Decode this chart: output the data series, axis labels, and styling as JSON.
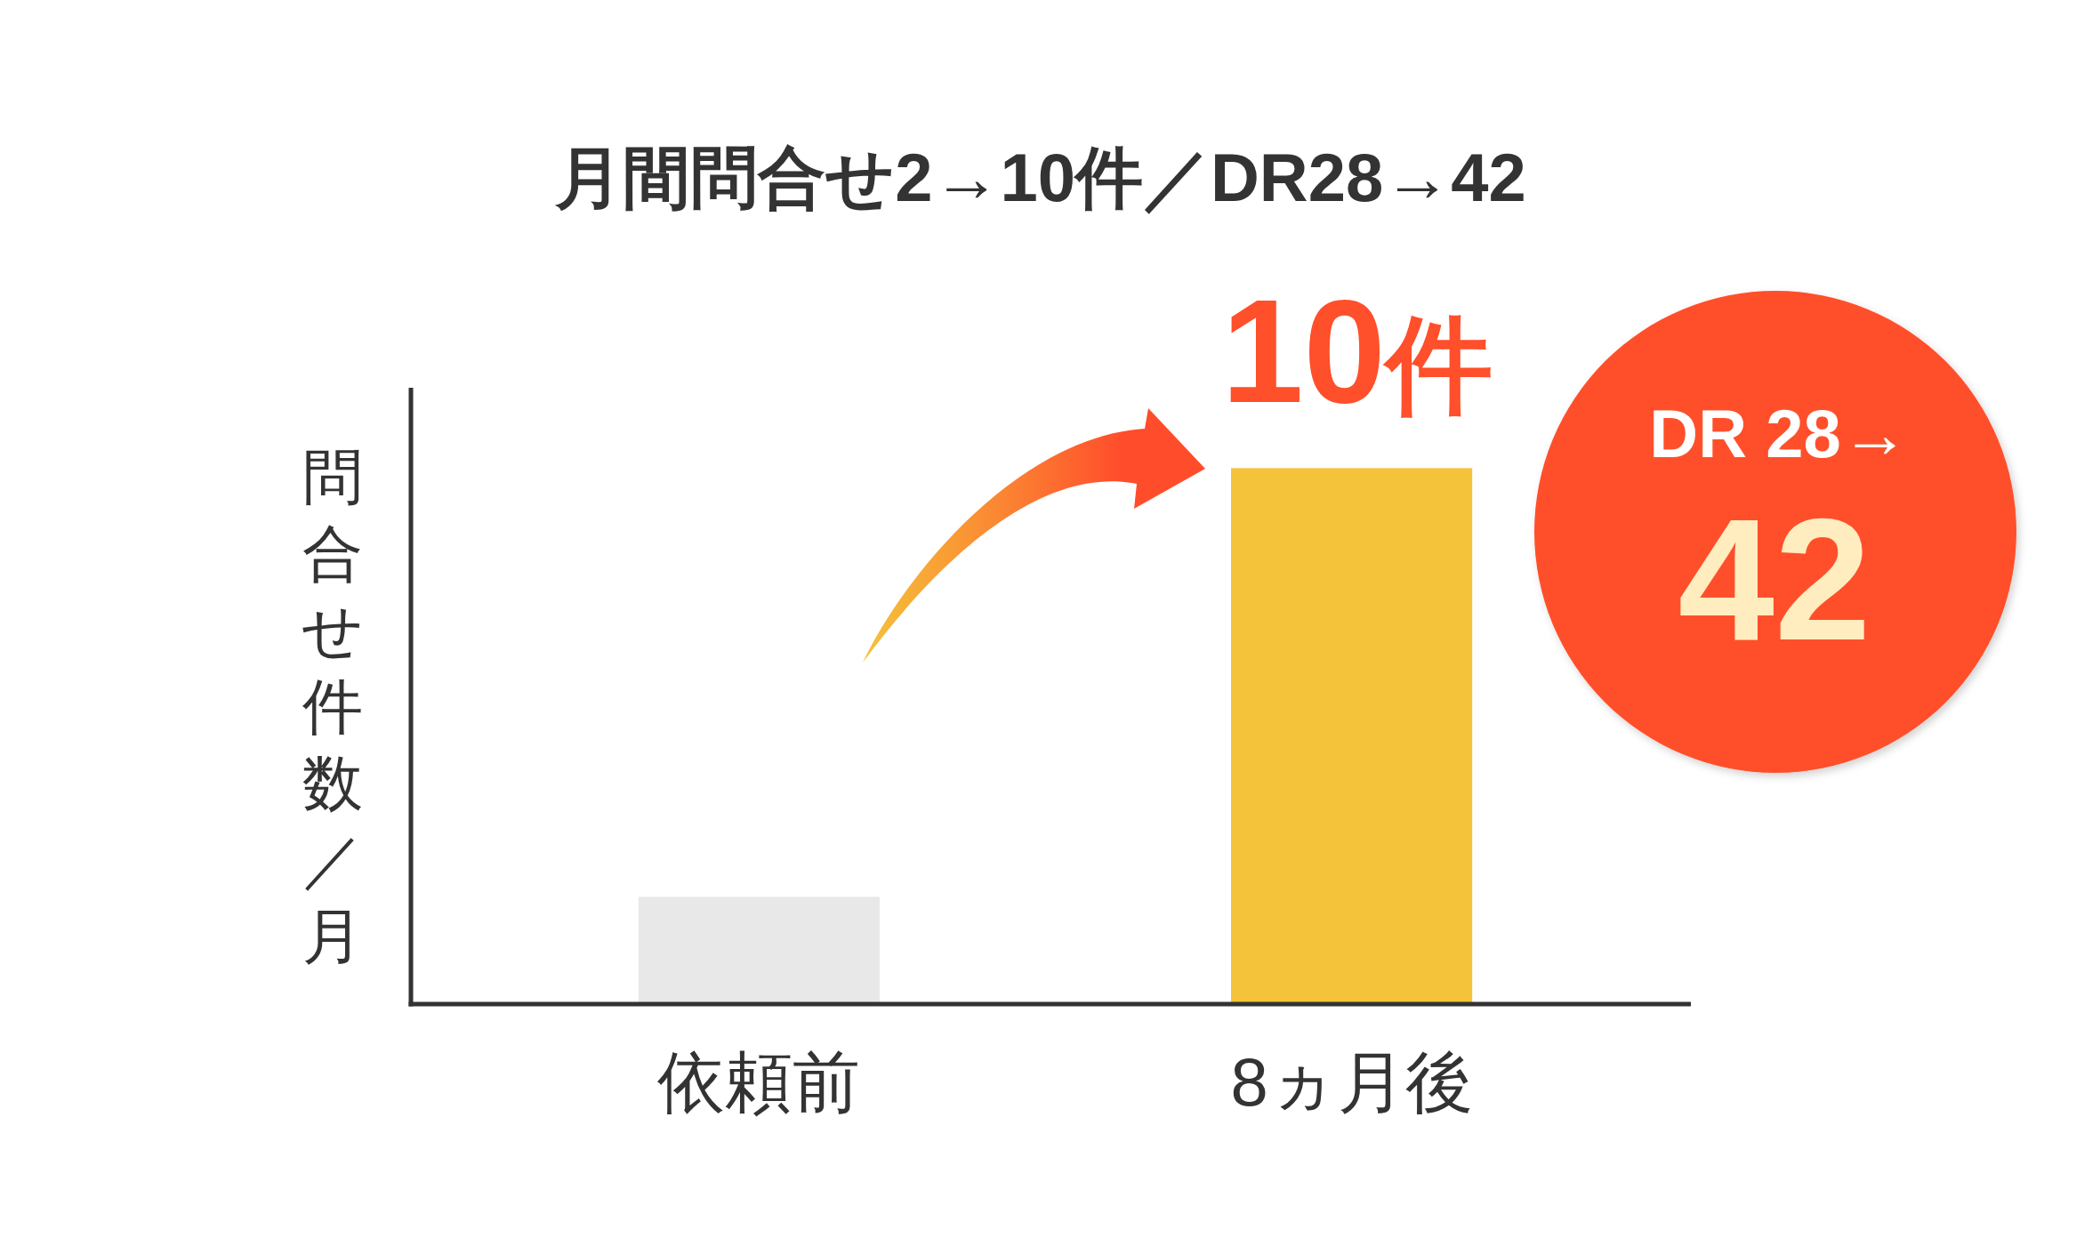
{
  "chart_data": {
    "type": "bar",
    "title": "月間問合せ2→10件／DR28→42",
    "ylabel": "問合せ件数／月",
    "categories": [
      "依頼前",
      "8ヵ月後"
    ],
    "values": [
      2,
      10
    ],
    "colors": [
      "#e8e8e8",
      "#f4c33a"
    ],
    "value_labels": [
      null,
      "10件"
    ],
    "ylim": [
      0,
      11.5
    ],
    "annotations": [
      "DR 28→",
      "42"
    ]
  }
}
